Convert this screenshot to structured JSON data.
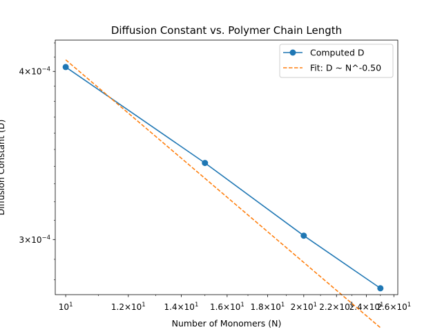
{
  "chart_data": {
    "type": "line",
    "title": "Diffusion Constant vs. Polymer Chain Length",
    "xlabel": "Number of Monomers (N)",
    "ylabel": "Diffusion Constant (D)",
    "xscale": "log",
    "yscale": "log",
    "xlim": [
      9.7,
      26.3
    ],
    "ylim": [
      0.000273,
      0.000422
    ],
    "xticks": [
      {
        "value": 10,
        "base": "10",
        "exp": "1",
        "mantissa": ""
      },
      {
        "value": 12,
        "base": "10",
        "exp": "1",
        "mantissa": "1.2×"
      },
      {
        "value": 14,
        "base": "10",
        "exp": "1",
        "mantissa": "1.4×"
      },
      {
        "value": 16,
        "base": "10",
        "exp": "1",
        "mantissa": "1.6×"
      },
      {
        "value": 18,
        "base": "10",
        "exp": "1",
        "mantissa": "1.8×"
      },
      {
        "value": 20,
        "base": "10",
        "exp": "1",
        "mantissa": "2×"
      },
      {
        "value": 22,
        "base": "10",
        "exp": "1",
        "mantissa": "2.2×"
      },
      {
        "value": 24,
        "base": "10",
        "exp": "1",
        "mantissa": "2.4×"
      },
      {
        "value": 26,
        "base": "10",
        "exp": "1",
        "mantissa": "2.6×"
      }
    ],
    "yticks": [
      {
        "value": 0.0004,
        "mantissa": "4×",
        "base": "10",
        "exp": "−4"
      },
      {
        "value": 0.0003,
        "mantissa": "3×",
        "base": "10",
        "exp": "−4"
      }
    ],
    "series": [
      {
        "name": "Computed D",
        "style": "line-marker",
        "color": "#1f77b4",
        "x": [
          10,
          15,
          20,
          25
        ],
        "y": [
          0.000403,
          0.000342,
          0.000302,
          0.000276
        ]
      },
      {
        "name": "Fit: D ~ N^-0.50",
        "style": "dashed",
        "color": "#ff7f0e",
        "x": [
          10,
          25
        ],
        "y": [
          0.000408,
          0.000258
        ]
      }
    ],
    "legend": "top-right",
    "grid": false
  }
}
